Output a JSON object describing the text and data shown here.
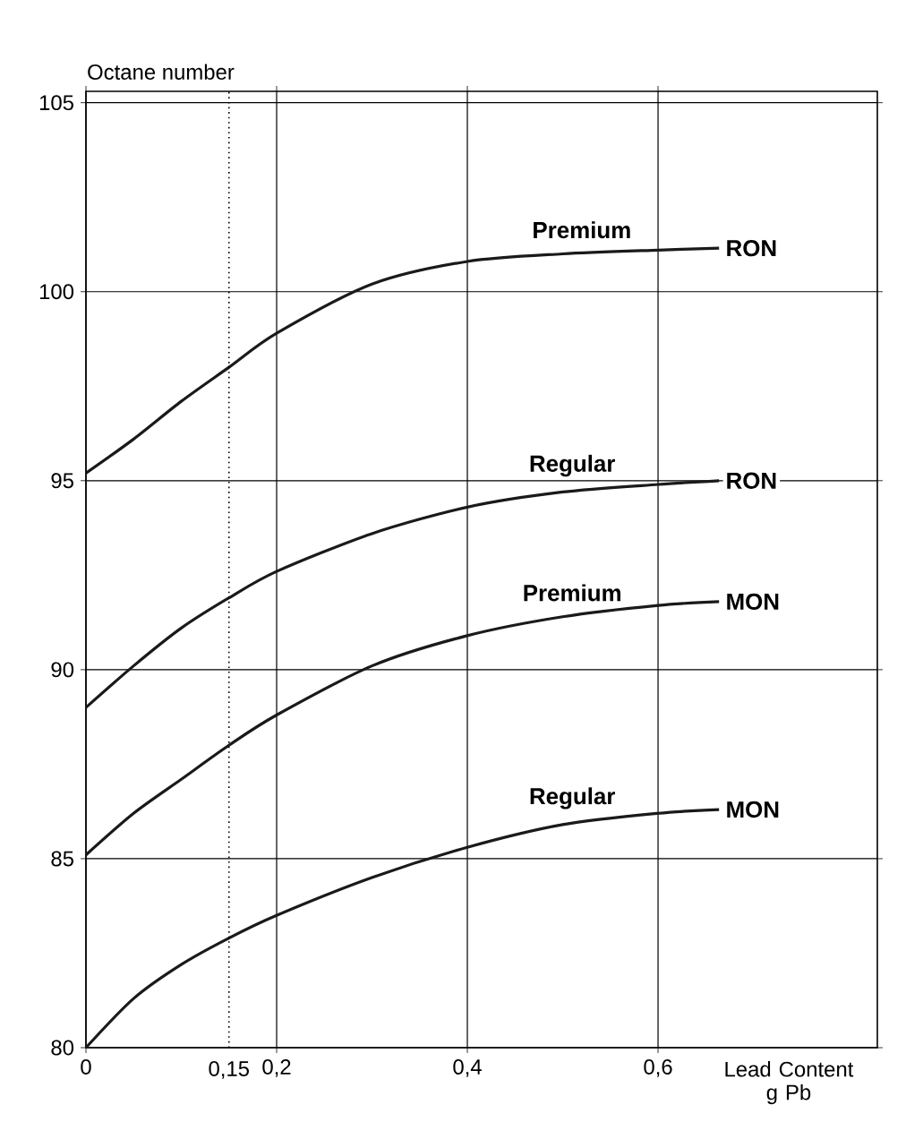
{
  "chart_data": {
    "type": "line",
    "xlabel": "Lead Content g Pb",
    "ylabel": "Octane number",
    "x": [
      0,
      0.05,
      0.1,
      0.15,
      0.2,
      0.3,
      0.4,
      0.5,
      0.6,
      0.664
    ],
    "series": [
      {
        "color": "#1a1a1a",
        "values": [
          95.2,
          96.1,
          97.1,
          98.0,
          98.9,
          100.2,
          100.8,
          101.0,
          101.1,
          101.15
        ]
      },
      {
        "color": "#1a1a1a",
        "values": [
          89.0,
          90.1,
          91.1,
          91.9,
          92.6,
          93.6,
          94.3,
          94.7,
          94.9,
          95.0
        ]
      },
      {
        "color": "#1a1a1a",
        "values": [
          85.1,
          86.2,
          87.1,
          88.0,
          88.8,
          90.1,
          90.9,
          91.4,
          91.7,
          91.8
        ]
      },
      {
        "color": "#1a1a1a",
        "values": [
          80.0,
          81.3,
          82.2,
          82.9,
          83.5,
          84.5,
          85.3,
          85.9,
          86.2,
          86.3
        ]
      }
    ],
    "xlim": [
      0,
      0.83
    ],
    "ylim": [
      80,
      105.3
    ],
    "xticks": [
      0,
      {
        "value": 0.2,
        "label": "0,2"
      },
      {
        "value": 0.4,
        "label": "0,4"
      },
      {
        "value": 0.6,
        "label": "0,6"
      }
    ],
    "yticks": [
      80,
      85,
      90,
      95,
      100,
      105
    ],
    "grid": true,
    "marker": "none",
    "line_style": "solid",
    "ref_lines": [
      {
        "axis": "x",
        "value": 0.15,
        "label": "0,15",
        "line_style": "dotted"
      }
    ],
    "annotations": [
      {
        "text": "Premium",
        "x": 0.52,
        "y": 101.0
      },
      {
        "text": "RON",
        "x": 0.664,
        "y": 101.15
      },
      {
        "text": "Regular",
        "x": 0.51,
        "y": 94.7
      },
      {
        "text": "RON",
        "x": 0.664,
        "y": 95.0
      },
      {
        "text": "Premium",
        "x": 0.51,
        "y": 91.4
      },
      {
        "text": "MON",
        "x": 0.664,
        "y": 91.8
      },
      {
        "text": "Regular",
        "x": 0.51,
        "y": 85.9
      },
      {
        "text": "MON",
        "x": 0.664,
        "y": 86.3
      }
    ]
  }
}
